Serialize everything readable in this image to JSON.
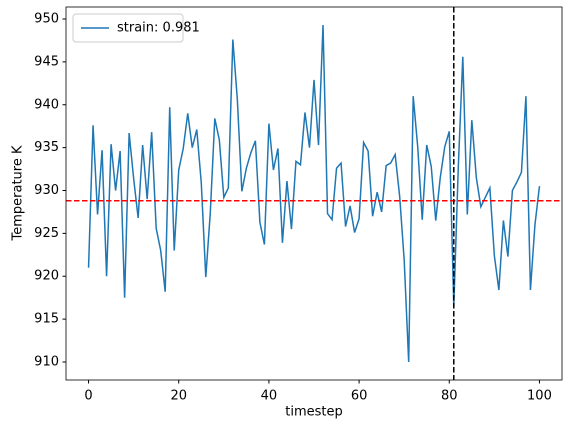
{
  "chart_data": {
    "type": "line",
    "xlabel": "timestep",
    "ylabel": "Temperature K",
    "x": [
      0,
      1,
      2,
      3,
      4,
      5,
      6,
      7,
      8,
      9,
      10,
      11,
      12,
      13,
      14,
      15,
      16,
      17,
      18,
      19,
      20,
      21,
      22,
      23,
      24,
      25,
      26,
      27,
      28,
      29,
      30,
      31,
      32,
      33,
      34,
      35,
      36,
      37,
      38,
      39,
      40,
      41,
      42,
      43,
      44,
      45,
      46,
      47,
      48,
      49,
      50,
      51,
      52,
      53,
      54,
      55,
      56,
      57,
      58,
      59,
      60,
      61,
      62,
      63,
      64,
      65,
      66,
      67,
      68,
      69,
      70,
      71,
      72,
      73,
      74,
      75,
      76,
      77,
      78,
      79,
      80,
      81,
      82,
      83,
      84,
      85,
      86,
      87,
      88,
      89,
      90,
      91,
      92,
      93,
      94,
      95,
      96,
      97,
      98,
      99,
      100
    ],
    "series": [
      {
        "name": "strain: 0.981",
        "color": "#1f77b4",
        "values": [
          921,
          937.6,
          927.2,
          934.7,
          920,
          935.4,
          930,
          934.6,
          917.5,
          936.7,
          931.4,
          926.8,
          935.3,
          929,
          936.8,
          925.6,
          923,
          918.2,
          939.7,
          923,
          932.4,
          934.9,
          939,
          935,
          937.1,
          930.9,
          919.9,
          927.4,
          938.4,
          935.9,
          929.2,
          930.3,
          947.6,
          940.6,
          929.9,
          932.6,
          934.4,
          935.8,
          926.3,
          923.7,
          937.8,
          932.4,
          934.9,
          923.9,
          931.1,
          925.5,
          933.4,
          933,
          939.1,
          935,
          942.9,
          935.3,
          949.3,
          927.3,
          926.6,
          932.6,
          933.2,
          925.8,
          928.2,
          925.1,
          926.7,
          935.6,
          934.6,
          927,
          929.8,
          927.5,
          932.9,
          933.2,
          934.2,
          929.3,
          921.9,
          910,
          941,
          935.1,
          926.6,
          935.3,
          932.8,
          926.5,
          931.5,
          935.1,
          936.9,
          916.5,
          932.7,
          945.6,
          927.2,
          938.2,
          931.5,
          928.1,
          929.2,
          930.3,
          922.4,
          918.4,
          926.5,
          922.3,
          930,
          931,
          932.1,
          941,
          918.4,
          926,
          930.5
        ]
      }
    ],
    "hline": {
      "y": 928.8,
      "color": "#ff0000"
    },
    "vline": {
      "x": 81,
      "color": "#000000"
    },
    "xlim": [
      -5,
      105
    ],
    "xticks": [
      0,
      20,
      40,
      60,
      80,
      100
    ],
    "ylim": [
      907.9,
      951.4
    ],
    "yticks": [
      910,
      915,
      920,
      925,
      930,
      935,
      940,
      945,
      950
    ],
    "legend": "upper left",
    "grid": false
  }
}
